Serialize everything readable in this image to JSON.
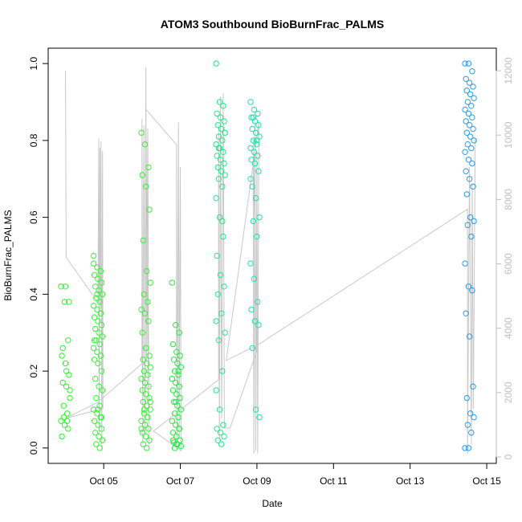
{
  "chart_data": {
    "type": "scatter",
    "title": "ATOM3 Southbound BioBurnFrac_PALMS",
    "xlabel": "Date",
    "ylabel": "BioBurnFrac_PALMS",
    "x_tick_labels": [
      "Oct 05",
      "Oct 07",
      "Oct 09",
      "Oct 11",
      "Oct 13",
      "Oct 15"
    ],
    "x_ticks_day": [
      5,
      7,
      9,
      11,
      13,
      15
    ],
    "xlim_day": [
      3.55,
      15.25
    ],
    "ylim": [
      -0.04,
      1.04
    ],
    "y_ticks": [
      "0.0",
      "0.2",
      "0.4",
      "0.6",
      "0.8",
      "1.0"
    ],
    "y2_label": "",
    "y2_ticks": [
      "0",
      "2000",
      "4000",
      "6000",
      "8000",
      "10000",
      "12000"
    ],
    "y2lim": [
      -200,
      12700
    ],
    "colors": {
      "altitude_line": "#c8c8c8",
      "axis": "#000000",
      "right_axis": "#bfbfbf"
    },
    "series": [
      {
        "day": 4.0,
        "color": "#2cf52c",
        "values": [
          0.42,
          0.38,
          0.28,
          0.24,
          0.22,
          0.19,
          0.17,
          0.16,
          0.13,
          0.11,
          0.09,
          0.07,
          0.06,
          0.05,
          0.03,
          0.42,
          0.38,
          0.26,
          0.2,
          0.15,
          0.08,
          0.07
        ]
      },
      {
        "day": 4.85,
        "color": "#3cf03c",
        "values": [
          0.5,
          0.47,
          0.46,
          0.45,
          0.44,
          0.43,
          0.42,
          0.41,
          0.4,
          0.39,
          0.38,
          0.37,
          0.36,
          0.35,
          0.34,
          0.33,
          0.32,
          0.31,
          0.3,
          0.29,
          0.28,
          0.27,
          0.26,
          0.25,
          0.24,
          0.23,
          0.22,
          0.2,
          0.18,
          0.16,
          0.15,
          0.13,
          0.11,
          0.1,
          0.09,
          0.08,
          0.07,
          0.06,
          0.05,
          0.04,
          0.03,
          0.02,
          0.01,
          0.0,
          0.48,
          0.4,
          0.35,
          0.28,
          0.1,
          0.08
        ]
      },
      {
        "day": 6.1,
        "color": "#38f038",
        "values": [
          0.82,
          0.79,
          0.73,
          0.71,
          0.68,
          0.62,
          0.54,
          0.46,
          0.43,
          0.4,
          0.38,
          0.36,
          0.35,
          0.33,
          0.3,
          0.26,
          0.24,
          0.23,
          0.22,
          0.21,
          0.2,
          0.19,
          0.18,
          0.17,
          0.16,
          0.15,
          0.14,
          0.13,
          0.12,
          0.11,
          0.1,
          0.09,
          0.08,
          0.07,
          0.06,
          0.05,
          0.04,
          0.03,
          0.02,
          0.01,
          0.0,
          0.12,
          0.1,
          0.08,
          0.05
        ]
      },
      {
        "day": 6.9,
        "color": "#28e844",
        "values": [
          0.43,
          0.32,
          0.3,
          0.27,
          0.25,
          0.24,
          0.23,
          0.22,
          0.21,
          0.2,
          0.19,
          0.18,
          0.17,
          0.16,
          0.15,
          0.14,
          0.13,
          0.12,
          0.11,
          0.1,
          0.09,
          0.08,
          0.07,
          0.06,
          0.05,
          0.04,
          0.03,
          0.02,
          0.015,
          0.01,
          0.005,
          0.0,
          0.2,
          0.18,
          0.12,
          0.05,
          0.02,
          0.01
        ]
      },
      {
        "day": 8.05,
        "color": "#22e88a",
        "values": [
          1.0,
          0.9,
          0.89,
          0.87,
          0.86,
          0.85,
          0.84,
          0.83,
          0.82,
          0.81,
          0.8,
          0.79,
          0.78,
          0.77,
          0.76,
          0.75,
          0.74,
          0.73,
          0.72,
          0.71,
          0.7,
          0.68,
          0.65,
          0.6,
          0.55,
          0.5,
          0.45,
          0.42,
          0.4,
          0.35,
          0.3,
          0.28,
          0.2,
          0.15,
          0.1,
          0.06,
          0.05,
          0.04,
          0.03,
          0.02,
          0.01,
          0.82,
          0.78,
          0.59,
          0.33
        ]
      },
      {
        "day": 8.95,
        "color": "#20e0a8",
        "values": [
          0.9,
          0.88,
          0.87,
          0.86,
          0.85,
          0.84,
          0.83,
          0.82,
          0.81,
          0.8,
          0.79,
          0.78,
          0.77,
          0.76,
          0.75,
          0.74,
          0.72,
          0.68,
          0.65,
          0.6,
          0.59,
          0.55,
          0.48,
          0.44,
          0.38,
          0.36,
          0.33,
          0.32,
          0.26,
          0.1,
          0.08,
          0.86,
          0.8,
          0.7
        ]
      },
      {
        "day": 14.55,
        "color": "#2a9ae8",
        "values": [
          1.0,
          1.0,
          0.98,
          0.96,
          0.95,
          0.94,
          0.93,
          0.92,
          0.91,
          0.9,
          0.89,
          0.88,
          0.87,
          0.86,
          0.85,
          0.84,
          0.83,
          0.82,
          0.81,
          0.8,
          0.79,
          0.78,
          0.77,
          0.75,
          0.74,
          0.72,
          0.7,
          0.68,
          0.66,
          0.6,
          0.59,
          0.58,
          0.55,
          0.48,
          0.42,
          0.41,
          0.35,
          0.29,
          0.16,
          0.13,
          0.09,
          0.08,
          0.06,
          0.04,
          0.0,
          0.0
        ]
      }
    ],
    "altitude_path": [
      [
        4.0,
        12000
      ],
      [
        4.02,
        6200
      ],
      [
        4.85,
        4800
      ],
      [
        4.87,
        9900
      ],
      [
        4.88,
        700
      ],
      [
        4.9,
        9600
      ],
      [
        4.92,
        4600
      ],
      [
        4.93,
        9800
      ],
      [
        4.95,
        200
      ],
      [
        4.97,
        9500
      ],
      [
        4.98,
        1500
      ],
      [
        4.0,
        1200
      ],
      [
        4.85,
        1700
      ],
      [
        6.0,
        2900
      ],
      [
        6.0,
        10500
      ],
      [
        6.02,
        400
      ],
      [
        6.05,
        10300
      ],
      [
        6.08,
        700
      ],
      [
        6.1,
        12100
      ],
      [
        6.12,
        3000
      ],
      [
        6.15,
        10200
      ],
      [
        6.18,
        400
      ],
      [
        6.1,
        10800
      ],
      [
        6.9,
        9700
      ],
      [
        6.9,
        3300
      ],
      [
        6.9,
        9200
      ],
      [
        6.92,
        300
      ],
      [
        6.95,
        10400
      ],
      [
        6.97,
        600
      ],
      [
        7.0,
        9000
      ],
      [
        7.02,
        200
      ],
      [
        6.3,
        800
      ],
      [
        8.0,
        2400
      ],
      [
        8.0,
        10300
      ],
      [
        8.02,
        500
      ],
      [
        8.05,
        11200
      ],
      [
        8.08,
        1200
      ],
      [
        8.12,
        11300
      ],
      [
        8.15,
        900
      ],
      [
        8.3,
        900
      ],
      [
        9.0,
        3300
      ],
      [
        8.9,
        9900
      ],
      [
        8.92,
        100
      ],
      [
        8.95,
        10400
      ],
      [
        8.97,
        200
      ],
      [
        9.0,
        9500
      ],
      [
        9.02,
        100
      ],
      [
        9.05,
        10400
      ],
      [
        8.2,
        3000
      ],
      [
        9.05,
        3500
      ],
      [
        14.5,
        7700
      ],
      [
        14.5,
        100
      ],
      [
        14.55,
        9000
      ],
      [
        14.6,
        400
      ],
      [
        14.62,
        8500
      ],
      [
        14.65,
        1500
      ],
      [
        14.7,
        9900
      ]
    ]
  }
}
